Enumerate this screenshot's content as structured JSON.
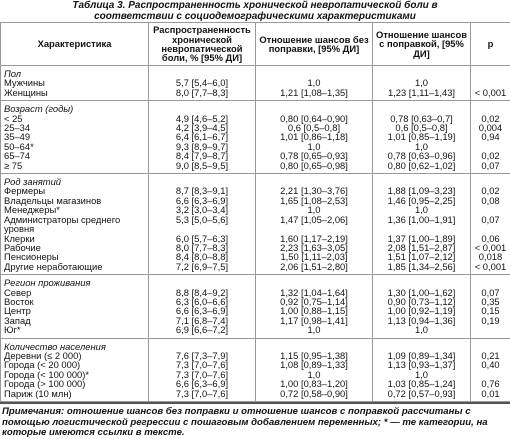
{
  "title": "Таблица 3. Распространенность хронической невропатической боли в соответствии с социодемографическими характеристиками",
  "table": {
    "header": [
      "Характеристика",
      "Распространенность хронической невропатической боли, % [95% ДИ]",
      "Отношение шансов без поправки, [95% ДИ]",
      "Отношение шансов с поправкой, [95% ДИ]",
      "p"
    ],
    "groups": [
      {
        "label": "Пол",
        "rows": [
          [
            "Мужчины",
            "5,7 [5,4–6,0]",
            "1,0",
            "1,0"
          ],
          [
            "Женщины",
            "8,0 [7,7–8,3]",
            "1,21 [1,08–1,35]",
            "1,23 [1,11–1,43]",
            "< 0,001"
          ]
        ]
      },
      {
        "label": "Возраст (годы)",
        "rows": [
          [
            "< 25",
            "4,9 [4,6–5,2]",
            "0,80 [0,64–0,90]",
            "0,78 [0,63–0,7]",
            "0,02"
          ],
          [
            "25–34",
            "4,2 [3,9–4,5]",
            "0,6 [0,5–0,8]",
            "0,6 [0,5–0,8]",
            "0,004"
          ],
          [
            "35–49",
            "6,4 [6,1–6,7]",
            "1,01 [0,86–1,18]",
            "1,01 [0,85–1,19]",
            "0,94"
          ],
          [
            "50–64*",
            "9,3 [8,9–9,7]",
            "1,0",
            "1,0"
          ],
          [
            "65–74",
            "8,4 [7,9–8,7]",
            "0,78 [0,65–0,93]",
            "0,78 [0,63–0,96]",
            "0,02"
          ],
          [
            "≥ 75",
            "9,0 [8,5–9,5]",
            "0,80 [0,65–0,98]",
            "0,80 [0,62–1,02]",
            "0,07"
          ]
        ]
      },
      {
        "label": "Род занятий",
        "rows": [
          [
            "Фермеры",
            "8,7 [8,3–9,1]",
            "2,21 [1,30–3,76]",
            "1,88 [1,09–3,23]",
            "0,02"
          ],
          [
            "Владельцы магазинов",
            "6,6 [6,3–6,9]",
            "1,65 [1,08–2,53]",
            "1,46 [0,95–2,25]",
            "0,08"
          ],
          [
            "Менеджеры*",
            "3,2 [3,0–3,4]",
            "1,0",
            "1,0"
          ],
          [
            "Администраторы среднего уровня",
            "5,3 [5,0–5,6]",
            "1,47 [1,05–2,06]",
            "1,36 [1,00–1,91]",
            "0,07"
          ],
          [
            "Клерки",
            "6,0 [5,7–6,3]",
            "1,60 [1,17–2,19]",
            "1,37 [1,00–1,89]",
            "0,06"
          ],
          [
            "Рабочие",
            "8,0 [7,7–8,3]",
            "2,23 [1,63–3,05]",
            "2,08 [1,51–2,87]",
            "< 0,001"
          ],
          [
            "Пенсионеры",
            "8,4 [8,0–8,8]",
            "1,50 [1,11–2,03]",
            "1,51 [1,07–2,12]",
            "0,018"
          ],
          [
            "Другие неработающие",
            "7,2 [6,9–7,5]",
            "2,06 [1,51–2,80]",
            "1,85 [1,34–2,56]",
            "< 0,001"
          ]
        ]
      },
      {
        "label": "Регион проживания",
        "rows": [
          [
            "Север",
            "8,8 [8,4–9,2]",
            "1,32 [1,04–1,64]",
            "1,30 [1,00–1,62]",
            "0,07"
          ],
          [
            "Восток",
            "6,3 [6,0–6,6]",
            "0,92 [0,75–1,14]",
            "0,90 [0,73–1,12]",
            "0,35"
          ],
          [
            "Центр",
            "6,6 [6,3–6,9]",
            "1,00 [0,88–1,15]",
            "1,00 [0,92–1,19]",
            "0,15"
          ],
          [
            "Запад",
            "7,1 [6,8–7,4]",
            "1,17 [0,98–1,41]",
            "1,13 [0,94–1,36]",
            "0,19"
          ],
          [
            "Юг*",
            "6,9 [6,6–7,2]",
            "1,0",
            "1,0"
          ]
        ]
      },
      {
        "label": "Количество населения",
        "rows": [
          [
            "Деревни (≤ 2 000)",
            "7,6 [7,3–7,9]",
            "1,15 [0,95–1,38]",
            "1,09 [0,89–1,34]",
            "0,21"
          ],
          [
            "Города (< 20 000)",
            "7,3 [7,0–7,6]",
            "1,08 [0,89–1,33]",
            "1,13 [0,93–1,37]",
            "0,40"
          ],
          [
            "Города (< 100 000)*",
            "7,3 [7,0–7,6]",
            "1,0",
            "1,0"
          ],
          [
            "Города (> 100 000)",
            "6,6 [6,3–6,9]",
            "1,00 [0,83–1,20]",
            "1,03 [0,85–1,24]",
            "0,76"
          ],
          [
            "Париж (10 млн)",
            "7,3 [7,0–7,6]",
            "0,72 [0,58–0,90]",
            "0,72 [0,57–0,93]",
            "0,01"
          ]
        ]
      }
    ]
  },
  "note": "Примечания: отношение шансов без поправки и отношение шансов с поправкой рассчитаны с помощью логистической регрессии с пошаговым добавлением переменных; * — те категории, на которые имеются ссылки в тексте."
}
